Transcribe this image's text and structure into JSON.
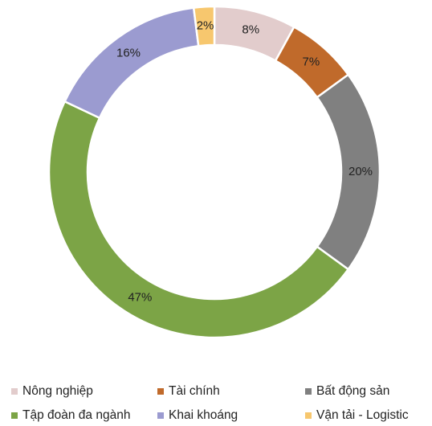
{
  "chart_data": {
    "type": "donut",
    "categories": [
      "Nông nghiệp",
      "Tài chính",
      "Bất động sản",
      "Tập đoàn đa ngành",
      "Khai khoáng",
      "Vận tải - Logistic"
    ],
    "values": [
      8,
      7,
      20,
      47,
      16,
      2
    ],
    "value_labels": [
      "8%",
      "7%",
      "20%",
      "47%",
      "16%",
      "2%"
    ],
    "colors": [
      "#e2cccc",
      "#c06a2b",
      "#808080",
      "#7ca446",
      "#9b9bd0",
      "#f7c76e"
    ],
    "legend": "bottom"
  }
}
